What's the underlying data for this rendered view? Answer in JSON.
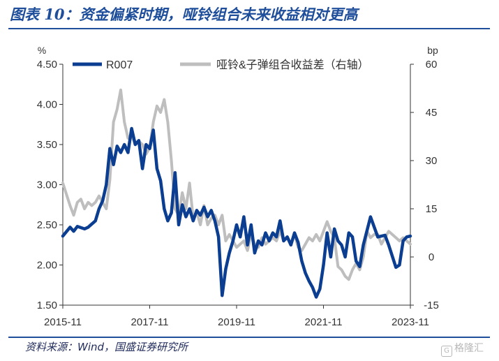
{
  "title": "图表 10：资金偏紧时期，哑铃组合未来收益相对更高",
  "source": "资料来源：Wind，国盛证券研究所",
  "watermark": "格隆汇",
  "chart_data": {
    "type": "line",
    "title": "图表 10：资金偏紧时期，哑铃组合未来收益相对更高",
    "x_tick_labels": [
      "2015-11",
      "2017-11",
      "2019-11",
      "2021-11",
      "2023-11"
    ],
    "x_range": [
      "2015-11",
      "2023-11"
    ],
    "left_axis": {
      "unit": "%",
      "ylim": [
        1.5,
        4.5
      ],
      "ticks": [
        "1.50",
        "2.00",
        "2.50",
        "3.00",
        "3.50",
        "4.00",
        "4.50"
      ]
    },
    "right_axis": {
      "unit": "bp",
      "ylim": [
        -15,
        60
      ],
      "ticks": [
        "-15",
        "0",
        "15",
        "30",
        "45",
        "60"
      ]
    },
    "legend_position": "top",
    "grid": false,
    "series": [
      {
        "name": "R007",
        "axis": "left",
        "color": "#0B3D91",
        "values": [
          [
            "2015-11",
            2.36
          ],
          [
            "2016-01",
            2.47
          ],
          [
            "2016-02",
            2.42
          ],
          [
            "2016-03",
            2.48
          ],
          [
            "2016-05",
            2.45
          ],
          [
            "2016-06",
            2.47
          ],
          [
            "2016-08",
            2.55
          ],
          [
            "2016-09",
            2.7
          ],
          [
            "2016-10",
            2.8
          ],
          [
            "2016-11",
            3.0
          ],
          [
            "2016-12",
            3.45
          ],
          [
            "2017-01",
            3.25
          ],
          [
            "2017-02",
            3.48
          ],
          [
            "2017-03",
            3.4
          ],
          [
            "2017-04",
            3.5
          ],
          [
            "2017-05",
            3.4
          ],
          [
            "2017-06",
            3.7
          ],
          [
            "2017-07",
            3.5
          ],
          [
            "2017-08",
            3.55
          ],
          [
            "2017-09",
            3.2
          ],
          [
            "2017-10",
            3.5
          ],
          [
            "2017-11",
            3.45
          ],
          [
            "2017-12",
            3.68
          ],
          [
            "2018-01",
            3.2
          ],
          [
            "2018-02",
            3.05
          ],
          [
            "2018-03",
            2.7
          ],
          [
            "2018-04",
            2.55
          ],
          [
            "2018-05",
            2.65
          ],
          [
            "2018-06",
            3.15
          ],
          [
            "2018-07",
            2.5
          ],
          [
            "2018-08",
            2.75
          ],
          [
            "2018-09",
            2.6
          ],
          [
            "2018-10",
            2.7
          ],
          [
            "2018-11",
            2.55
          ],
          [
            "2018-12",
            2.68
          ],
          [
            "2019-01",
            2.62
          ],
          [
            "2019-02",
            2.72
          ],
          [
            "2019-03",
            2.6
          ],
          [
            "2019-04",
            2.68
          ],
          [
            "2019-05",
            2.55
          ],
          [
            "2019-06",
            2.35
          ],
          [
            "2019-07",
            1.62
          ],
          [
            "2019-08",
            1.95
          ],
          [
            "2019-09",
            2.15
          ],
          [
            "2019-10",
            2.3
          ],
          [
            "2019-11",
            2.5
          ],
          [
            "2019-12",
            2.35
          ],
          [
            "2020-01",
            2.6
          ],
          [
            "2020-02",
            2.25
          ],
          [
            "2020-03",
            2.5
          ],
          [
            "2020-04",
            2.15
          ],
          [
            "2020-05",
            2.3
          ],
          [
            "2020-06",
            2.25
          ],
          [
            "2020-07",
            2.4
          ],
          [
            "2020-08",
            2.3
          ],
          [
            "2020-09",
            2.4
          ],
          [
            "2020-10",
            2.35
          ],
          [
            "2020-11",
            2.55
          ],
          [
            "2020-12",
            2.3
          ],
          [
            "2021-01",
            2.35
          ],
          [
            "2021-02",
            2.25
          ],
          [
            "2021-03",
            2.4
          ],
          [
            "2021-04",
            2.28
          ],
          [
            "2021-05",
            2.05
          ],
          [
            "2021-06",
            1.9
          ],
          [
            "2021-07",
            1.8
          ],
          [
            "2021-08",
            1.72
          ],
          [
            "2021-09",
            1.6
          ],
          [
            "2021-10",
            1.7
          ],
          [
            "2021-11",
            2.0
          ],
          [
            "2021-12",
            2.4
          ],
          [
            "2022-01",
            2.1
          ],
          [
            "2022-02",
            2.45
          ],
          [
            "2022-03",
            2.3
          ],
          [
            "2022-04",
            2.25
          ],
          [
            "2022-05",
            2.1
          ],
          [
            "2022-06",
            2.4
          ],
          [
            "2022-07",
            2.35
          ],
          [
            "2022-08",
            2.05
          ],
          [
            "2022-09",
            1.98
          ],
          [
            "2022-10",
            2.25
          ],
          [
            "2022-12",
            2.6
          ],
          [
            "2023-02",
            2.35
          ],
          [
            "2023-04",
            2.37
          ],
          [
            "2023-05",
            2.25
          ],
          [
            "2023-07",
            1.97
          ],
          [
            "2023-08",
            2.0
          ],
          [
            "2023-09",
            2.3
          ],
          [
            "2023-10",
            2.35
          ],
          [
            "2023-11",
            2.36
          ]
        ]
      },
      {
        "name": "哑铃&子弹组合收益差（右轴）",
        "axis": "right",
        "color": "#BEBEBE",
        "values": [
          [
            "2015-11",
            23
          ],
          [
            "2016-01",
            16
          ],
          [
            "2016-02",
            13
          ],
          [
            "2016-03",
            17
          ],
          [
            "2016-04",
            18
          ],
          [
            "2016-05",
            15
          ],
          [
            "2016-06",
            17
          ],
          [
            "2016-07",
            16
          ],
          [
            "2016-08",
            17
          ],
          [
            "2016-09",
            19
          ],
          [
            "2016-10",
            17
          ],
          [
            "2016-11",
            15
          ],
          [
            "2016-12",
            24
          ],
          [
            "2017-01",
            42
          ],
          [
            "2017-02",
            46
          ],
          [
            "2017-03",
            52
          ],
          [
            "2017-04",
            42
          ],
          [
            "2017-05",
            37
          ],
          [
            "2017-06",
            38
          ],
          [
            "2017-07",
            35
          ],
          [
            "2017-08",
            36
          ],
          [
            "2017-09",
            35
          ],
          [
            "2017-10",
            32
          ],
          [
            "2017-11",
            34
          ],
          [
            "2017-12",
            42
          ],
          [
            "2018-01",
            47
          ],
          [
            "2018-02",
            45
          ],
          [
            "2018-03",
            49
          ],
          [
            "2018-04",
            42
          ],
          [
            "2018-05",
            30
          ],
          [
            "2018-06",
            15
          ],
          [
            "2018-07",
            13
          ],
          [
            "2018-08",
            20
          ],
          [
            "2018-09",
            15
          ],
          [
            "2018-10",
            23
          ],
          [
            "2018-11",
            12
          ],
          [
            "2018-12",
            14
          ],
          [
            "2019-01",
            10
          ],
          [
            "2019-02",
            16
          ],
          [
            "2019-03",
            10
          ],
          [
            "2019-04",
            12
          ],
          [
            "2019-05",
            13
          ],
          [
            "2019-06",
            10
          ],
          [
            "2019-07",
            13
          ],
          [
            "2019-08",
            5
          ],
          [
            "2019-09",
            7
          ],
          [
            "2019-10",
            5
          ],
          [
            "2019-11",
            3
          ],
          [
            "2019-12",
            4
          ],
          [
            "2020-01",
            5
          ],
          [
            "2020-02",
            2
          ],
          [
            "2020-03",
            7
          ],
          [
            "2020-04",
            4
          ],
          [
            "2020-05",
            3
          ],
          [
            "2020-06",
            6
          ],
          [
            "2020-07",
            4
          ],
          [
            "2020-08",
            5
          ],
          [
            "2020-09",
            6
          ],
          [
            "2020-10",
            5
          ],
          [
            "2020-11",
            8
          ],
          [
            "2020-12",
            5
          ],
          [
            "2021-01",
            6
          ],
          [
            "2021-02",
            4
          ],
          [
            "2021-03",
            7
          ],
          [
            "2021-04",
            3
          ],
          [
            "2021-05",
            2
          ],
          [
            "2021-06",
            4
          ],
          [
            "2021-07",
            6
          ],
          [
            "2021-08",
            5
          ],
          [
            "2021-09",
            7
          ],
          [
            "2021-10",
            5
          ],
          [
            "2021-11",
            8
          ],
          [
            "2021-12",
            11
          ],
          [
            "2022-01",
            8
          ],
          [
            "2022-02",
            6
          ],
          [
            "2022-03",
            -3
          ],
          [
            "2022-04",
            -4
          ],
          [
            "2022-05",
            -6
          ],
          [
            "2022-06",
            -7
          ],
          [
            "2022-07",
            -4
          ],
          [
            "2022-08",
            -2
          ],
          [
            "2022-09",
            -4
          ],
          [
            "2022-10",
            0
          ],
          [
            "2022-11",
            8
          ],
          [
            "2022-12",
            6
          ],
          [
            "2023-01",
            7
          ],
          [
            "2023-02",
            7
          ],
          [
            "2023-03",
            4
          ],
          [
            "2023-04",
            6
          ],
          [
            "2023-05",
            8
          ],
          [
            "2023-06",
            7
          ],
          [
            "2023-07",
            6
          ],
          [
            "2023-08",
            5
          ],
          [
            "2023-09",
            6
          ],
          [
            "2023-10",
            5
          ],
          [
            "2023-11",
            4
          ]
        ]
      }
    ]
  }
}
